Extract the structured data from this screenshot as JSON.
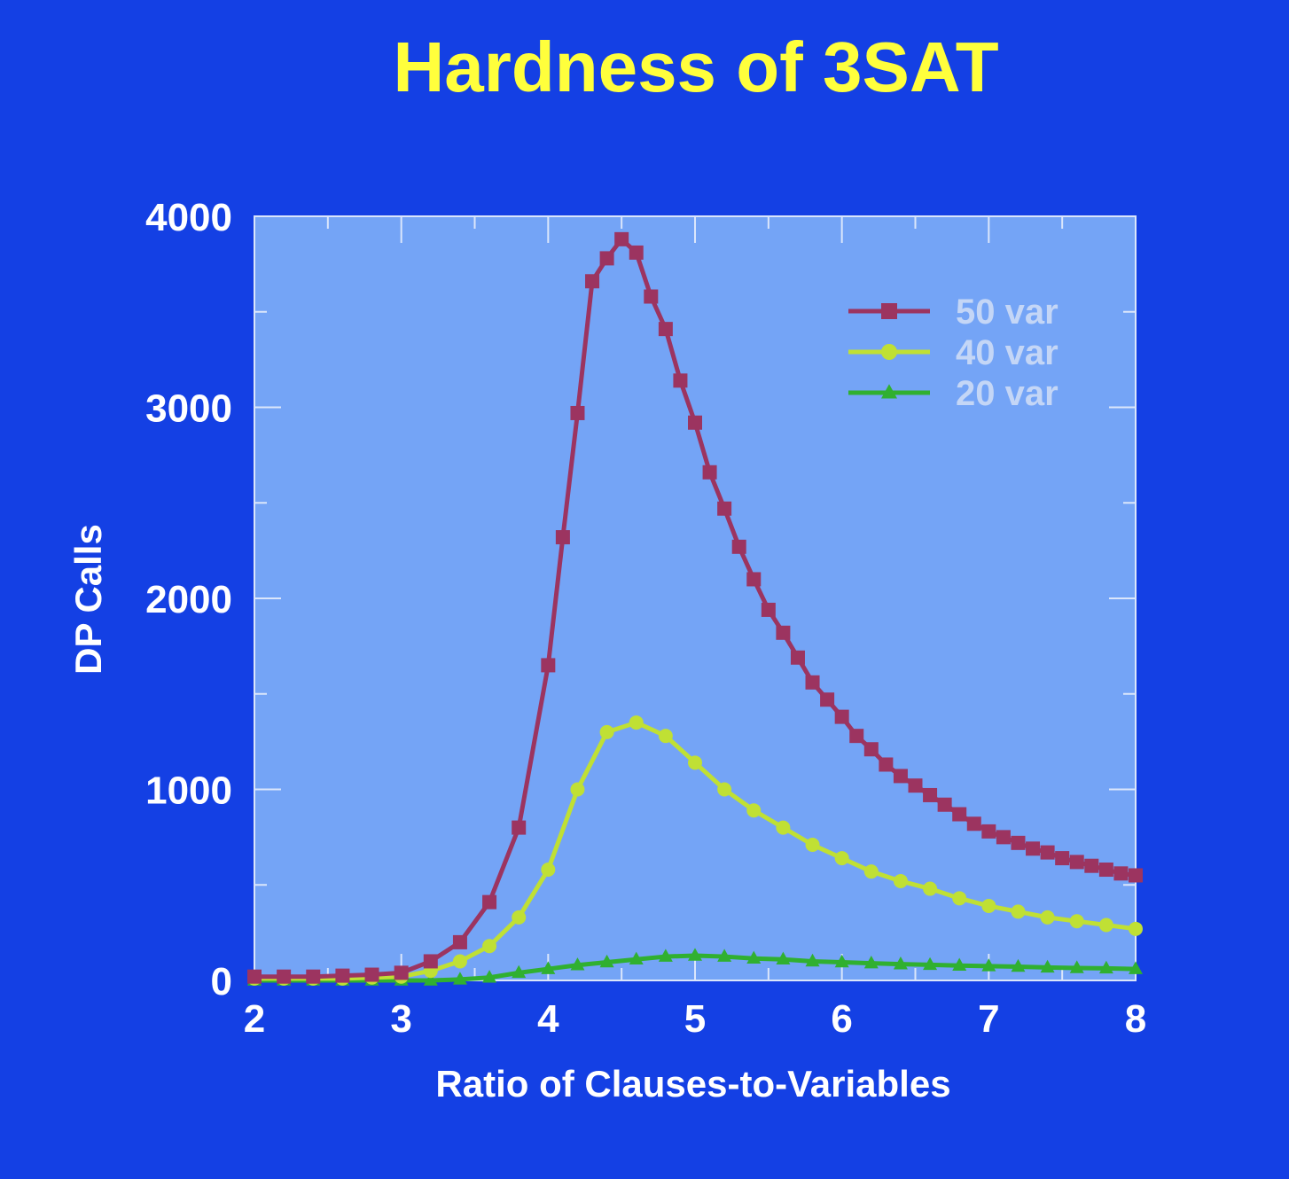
{
  "title": "Hardness of 3SAT",
  "chart_data": {
    "type": "line",
    "title": "Hardness of 3SAT",
    "xlabel": "Ratio of Clauses-to-Variables",
    "ylabel": "DP Calls",
    "xlim": [
      2,
      8
    ],
    "ylim": [
      0,
      4000
    ],
    "xticks": [
      "2",
      "3",
      "4",
      "5",
      "6",
      "7",
      "8"
    ],
    "yticks": [
      "0",
      "1000",
      "2000",
      "3000",
      "4000"
    ],
    "legend_position": "top-right",
    "grid": false,
    "colors": {
      "background": "#1440e4",
      "plot_area": "#74a4f6",
      "title": "#ffff3c"
    },
    "series": [
      {
        "name": "50 var",
        "color": "#9c3460",
        "marker": "square",
        "x": [
          2.0,
          2.2,
          2.4,
          2.6,
          2.8,
          3.0,
          3.2,
          3.4,
          3.6,
          3.8,
          4.0,
          4.1,
          4.2,
          4.3,
          4.4,
          4.5,
          4.6,
          4.7,
          4.8,
          4.9,
          5.0,
          5.1,
          5.2,
          5.3,
          5.4,
          5.5,
          5.6,
          5.7,
          5.8,
          5.9,
          6.0,
          6.1,
          6.2,
          6.3,
          6.4,
          6.5,
          6.6,
          6.7,
          6.8,
          6.9,
          7.0,
          7.1,
          7.2,
          7.3,
          7.4,
          7.5,
          7.6,
          7.7,
          7.8,
          7.9,
          8.0
        ],
        "y": [
          20,
          20,
          20,
          25,
          30,
          40,
          100,
          200,
          410,
          800,
          1650,
          2320,
          2970,
          3660,
          3780,
          3880,
          3810,
          3580,
          3410,
          3140,
          2920,
          2660,
          2470,
          2270,
          2100,
          1940,
          1820,
          1690,
          1560,
          1470,
          1380,
          1280,
          1210,
          1130,
          1070,
          1020,
          970,
          920,
          870,
          820,
          780,
          750,
          720,
          690,
          670,
          640,
          620,
          600,
          580,
          560,
          550
        ]
      },
      {
        "name": "40 var",
        "color": "#c0e034",
        "marker": "circle",
        "x": [
          2.0,
          2.2,
          2.4,
          2.6,
          2.8,
          3.0,
          3.2,
          3.4,
          3.6,
          3.8,
          4.0,
          4.2,
          4.4,
          4.6,
          4.8,
          5.0,
          5.2,
          5.4,
          5.6,
          5.8,
          6.0,
          6.2,
          6.4,
          6.6,
          6.8,
          7.0,
          7.2,
          7.4,
          7.6,
          7.8,
          8.0
        ],
        "y": [
          10,
          10,
          10,
          10,
          15,
          20,
          50,
          100,
          180,
          330,
          580,
          1000,
          1300,
          1350,
          1280,
          1140,
          1000,
          890,
          800,
          710,
          640,
          570,
          520,
          480,
          430,
          390,
          360,
          330,
          310,
          290,
          270
        ]
      },
      {
        "name": "20 var",
        "color": "#30b030",
        "marker": "triangle",
        "x": [
          2.0,
          2.2,
          2.4,
          2.6,
          2.8,
          3.0,
          3.2,
          3.4,
          3.6,
          3.8,
          4.0,
          4.2,
          4.4,
          4.6,
          4.8,
          5.0,
          5.2,
          5.4,
          5.6,
          5.8,
          6.0,
          6.2,
          6.4,
          6.6,
          6.8,
          7.0,
          7.2,
          7.4,
          7.6,
          7.8,
          8.0
        ],
        "y": [
          0,
          0,
          0,
          0,
          0,
          0,
          0,
          5,
          15,
          40,
          60,
          80,
          95,
          110,
          125,
          130,
          125,
          115,
          110,
          100,
          95,
          90,
          85,
          82,
          78,
          75,
          72,
          68,
          65,
          63,
          60
        ]
      }
    ]
  }
}
